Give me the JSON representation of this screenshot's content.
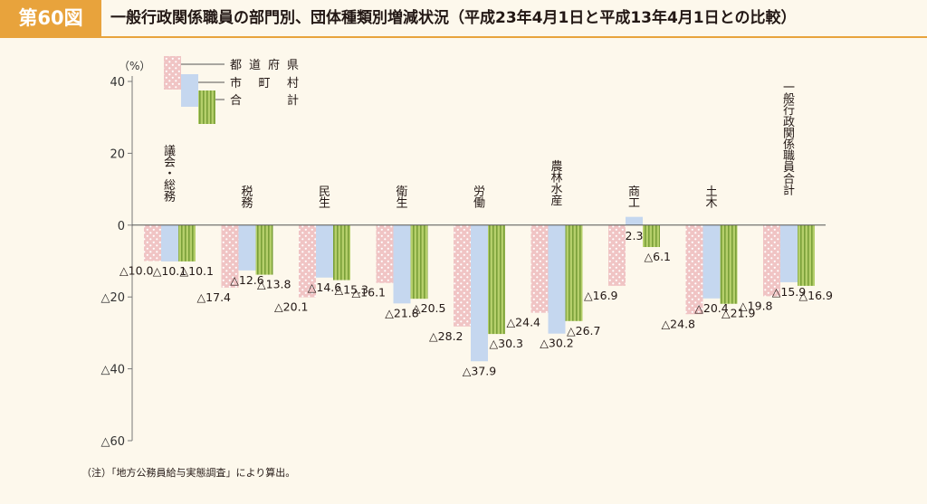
{
  "figure": {
    "number": "第60図",
    "title": "一般行政関係職員の部門別、団体種類別増減状況（平成23年4月1日と平成13年4月1日との比較）"
  },
  "note": "（注）「地方公務員給与実態調査」により算出。",
  "colors": {
    "prefecture": "#f0c4c4",
    "prefecture_dot": "#ffffff",
    "municipal": "#c5d7ef",
    "total": "#b5cf6b",
    "total_stripe": "#7aa039",
    "accent": "#e8a33c"
  },
  "chart_data": {
    "type": "bar",
    "ylabel": "（%）",
    "ylim": [
      -60,
      40
    ],
    "yticks": [
      40,
      20,
      0,
      -20,
      -40,
      -60
    ],
    "ytick_labels": [
      "40",
      "20",
      "0",
      "△20",
      "△40",
      "△60"
    ],
    "legend_position": "top-left",
    "categories": [
      "議会・総務",
      "税務",
      "民生",
      "衛生",
      "労働",
      "農林水産",
      "商工",
      "土木",
      "一般行政関係職員合計"
    ],
    "series": [
      {
        "name": "都道府県",
        "key": "prefecture",
        "values": [
          -10.0,
          -17.4,
          -20.1,
          -16.1,
          -28.2,
          -24.4,
          -16.9,
          -24.8,
          -19.8
        ],
        "labels": [
          "△10.0",
          "△17.4",
          "△20.1",
          "△16.1",
          "△28.2",
          "△24.4",
          "△16.9",
          "△24.8",
          "△19.8"
        ]
      },
      {
        "name": "市町村",
        "key": "municipal",
        "values": [
          -10.1,
          -12.6,
          -14.6,
          -21.8,
          -37.9,
          -30.2,
          2.3,
          -20.4,
          -15.9
        ],
        "labels": [
          "△10.1",
          "△12.6",
          "△14.6",
          "△21.8",
          "△37.9",
          "△30.2",
          "2.3",
          "△20.4",
          "△15.9"
        ]
      },
      {
        "name": "合計",
        "key": "total",
        "values": [
          -10.1,
          -13.8,
          -15.3,
          -20.5,
          -30.3,
          -26.7,
          -6.1,
          -21.9,
          -16.9
        ],
        "labels": [
          "△10.1",
          "△13.8",
          "△15.3",
          "△20.5",
          "△30.3",
          "△26.7",
          "△6.1",
          "△21.9",
          "△16.9"
        ]
      }
    ]
  }
}
